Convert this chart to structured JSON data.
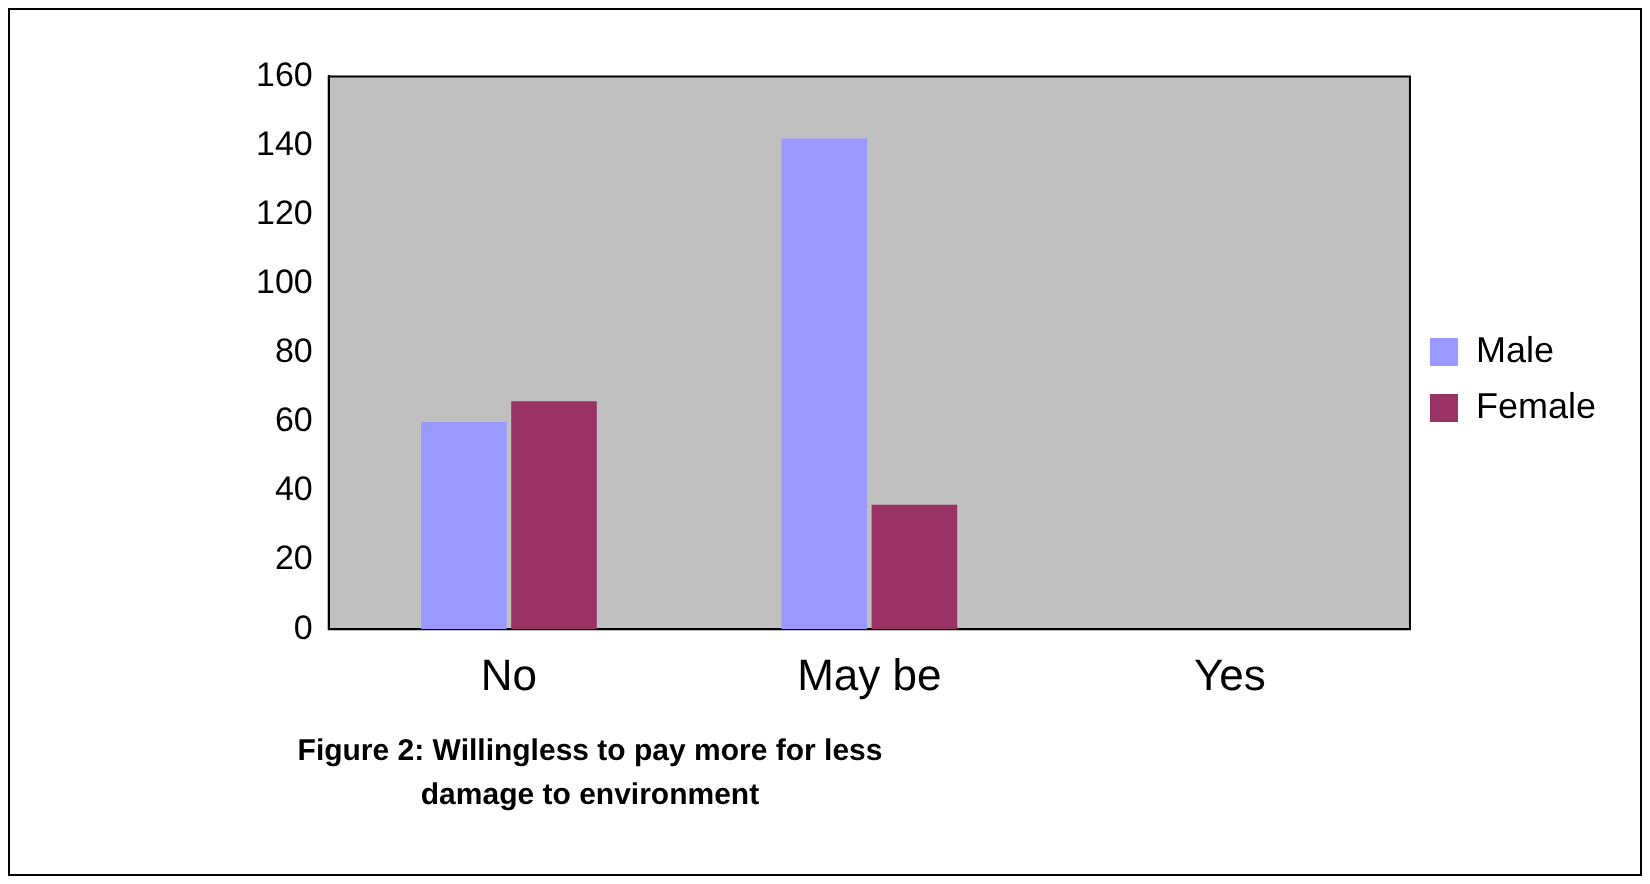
{
  "chart_data": {
    "type": "bar",
    "title": "Figure 2: Willingless to pay more for less damage to environment",
    "categories": [
      "No",
      "May be",
      "Yes"
    ],
    "series": [
      {
        "name": "Male",
        "color": "#9999ff",
        "values": [
          60,
          142,
          0
        ]
      },
      {
        "name": "Female",
        "color": "#993366",
        "values": [
          66,
          36,
          0
        ]
      }
    ],
    "ylim": [
      0,
      160
    ],
    "yticks": [
      0,
      20,
      40,
      60,
      80,
      100,
      120,
      140,
      160
    ],
    "grid": false,
    "legend": "right"
  }
}
